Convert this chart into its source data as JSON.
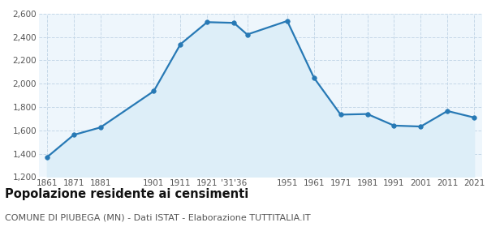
{
  "years": [
    1861,
    1871,
    1881,
    1901,
    1911,
    1921,
    1931,
    1936,
    1951,
    1961,
    1971,
    1981,
    1991,
    2001,
    2011,
    2021
  ],
  "population": [
    1370,
    1561,
    1625,
    1936,
    2338,
    2527,
    2521,
    2421,
    2537,
    2051,
    1735,
    1740,
    1641,
    1633,
    1766,
    1710
  ],
  "x_labels": [
    "1861",
    "1871",
    "1881",
    "1901",
    "1911",
    "1921",
    "'31'36",
    "",
    "1951",
    "1961",
    "1971",
    "1981",
    "1991",
    "2001",
    "2011",
    "2021"
  ],
  "ylim": [
    1200,
    2600
  ],
  "yticks": [
    1200,
    1400,
    1600,
    1800,
    2000,
    2200,
    2400,
    2600
  ],
  "line_color": "#2779b5",
  "fill_color": "#ddeef8",
  "marker_color": "#2779b5",
  "bg_color": "#eef6fc",
  "grid_color": "#c5d8e8",
  "title": "Popolazione residente ai censimenti",
  "subtitle": "COMUNE DI PIUBEGA (MN) - Dati ISTAT - Elaborazione TUTTITALIA.IT",
  "title_fontsize": 10.5,
  "subtitle_fontsize": 8.0,
  "tick_fontsize": 7.5
}
